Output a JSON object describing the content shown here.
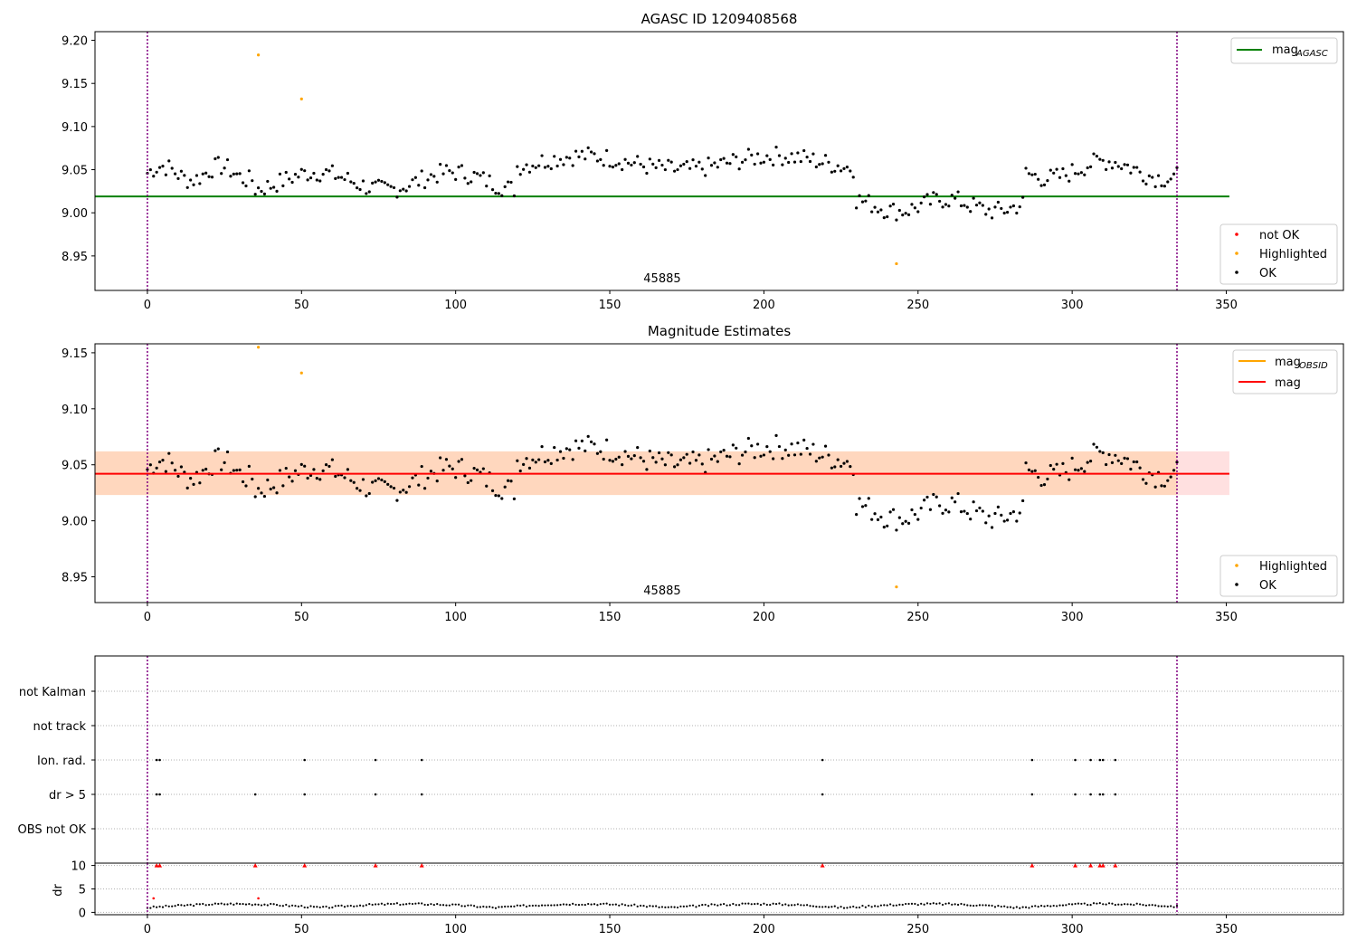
{
  "chart_data": [
    {
      "type": "scatter",
      "title": "AGASC ID 1209408568",
      "xlabel": "",
      "ylabel": "",
      "xlim": [
        -17,
        388
      ],
      "ylim": [
        8.91,
        9.21
      ],
      "xticks": [
        "0",
        "50",
        "100",
        "150",
        "200",
        "250",
        "300",
        "350"
      ],
      "yticks": [
        "8.95",
        "9.00",
        "9.05",
        "9.10",
        "9.15",
        "9.20"
      ],
      "obsid_label": "45885",
      "obsid_bounds": [
        0,
        334
      ],
      "mag_agasc": 9.019,
      "mag_agasc_xrange": [
        -17,
        351
      ],
      "legend_upper": [
        {
          "label": "mag",
          "sub": "AGASC",
          "color": "#008000"
        }
      ],
      "legend_lower": [
        {
          "label": "not OK",
          "color": "#ff0000"
        },
        {
          "label": "Highlighted",
          "color": "#ffa500"
        },
        {
          "label": "OK",
          "color": "#000000"
        }
      ],
      "series": [
        {
          "name": "Highlighted",
          "color": "#ffa500",
          "points": [
            [
              36,
              9.183
            ],
            [
              50,
              9.132
            ],
            [
              243,
              8.941
            ]
          ]
        }
      ]
    },
    {
      "type": "scatter",
      "title": "Magnitude Estimates",
      "xlabel": "",
      "ylabel": "",
      "xlim": [
        -17,
        388
      ],
      "ylim": [
        8.927,
        9.158
      ],
      "xticks": [
        "0",
        "50",
        "100",
        "150",
        "200",
        "250",
        "300",
        "350"
      ],
      "yticks": [
        "8.95",
        "9.00",
        "9.05",
        "9.10",
        "9.15"
      ],
      "obsid_label": "45885",
      "obsid_bounds": [
        0,
        334
      ],
      "mag": 9.042,
      "mag_band": [
        9.023,
        9.062
      ],
      "mag_obsid": 9.042,
      "mag_xrange": [
        -17,
        351
      ],
      "legend_upper": [
        {
          "label": "mag",
          "sub": "OBSID",
          "color": "#ffa500"
        },
        {
          "label": "mag",
          "sub": "",
          "color": "#ff0000"
        }
      ],
      "legend_lower": [
        {
          "label": "Highlighted",
          "color": "#ffa500"
        },
        {
          "label": "OK",
          "color": "#000000"
        }
      ],
      "series": [
        {
          "name": "Highlighted",
          "color": "#ffa500",
          "points": [
            [
              36,
              9.155
            ],
            [
              50,
              9.132
            ],
            [
              243,
              8.941
            ]
          ]
        }
      ]
    },
    {
      "type": "scatter",
      "title": "",
      "xlim": [
        -17,
        388
      ],
      "flag_rows": [
        "not Kalman",
        "not track",
        "Ion. rad.",
        "dr > 5",
        "OBS not OK"
      ],
      "flags": {
        "Ion. rad.": [
          3,
          4,
          51,
          74,
          89,
          219,
          287,
          301,
          306,
          309,
          310,
          314
        ],
        "dr > 5": [
          3,
          4,
          35,
          51,
          74,
          89,
          219,
          287,
          301,
          306,
          309,
          310,
          314
        ]
      },
      "obsid_bounds": [
        0,
        334
      ],
      "xticks": [
        "0",
        "50",
        "100",
        "150",
        "200",
        "250",
        "300",
        "350"
      ]
    },
    {
      "type": "scatter",
      "title": "",
      "ylabel": "dr",
      "xlim": [
        -17,
        388
      ],
      "ylim": [
        -0.5,
        10.5
      ],
      "yticks": [
        "0",
        "5",
        "10"
      ],
      "xticks": [
        "0",
        "50",
        "100",
        "150",
        "200",
        "250",
        "300",
        "350"
      ],
      "obsid_bounds": [
        0,
        334
      ],
      "clipped_x": [
        3,
        4,
        35,
        51,
        74,
        89,
        219,
        287,
        301,
        306,
        309,
        310,
        314
      ],
      "red_points": [
        [
          2,
          3.0
        ],
        [
          36,
          3.0
        ]
      ]
    }
  ]
}
